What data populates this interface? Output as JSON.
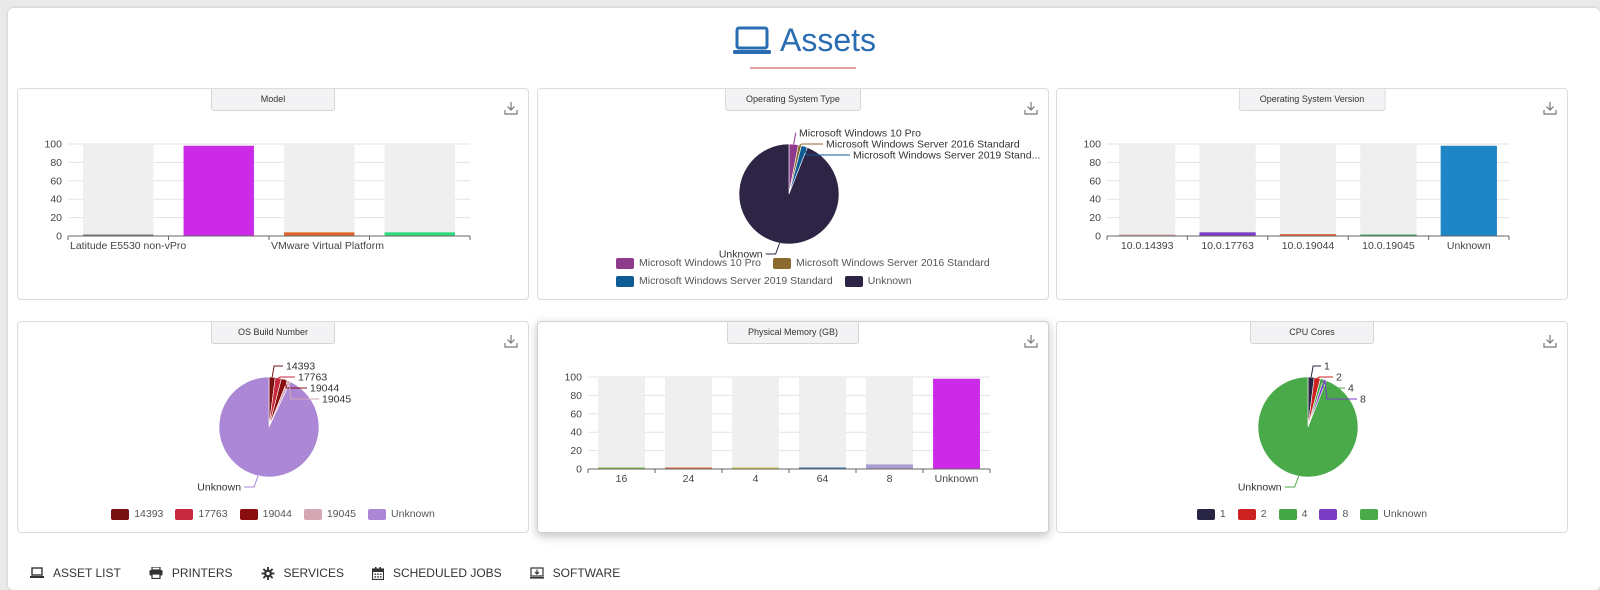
{
  "header": {
    "title": "Assets",
    "icon": "laptop-icon",
    "color": "#2a6db3"
  },
  "charts": [
    {
      "title": "Model",
      "chart_data": {
        "type": "bar",
        "categories": [
          "Latitude E5530 non-vPro",
          "",
          "VMware Virtual Platform",
          ""
        ],
        "xtick_labels": [
          "Latitude E5530 non-vPro",
          "VMware Virtual Platform"
        ],
        "values": [
          1,
          98,
          4,
          4
        ],
        "colors": [
          "#777777",
          "#cc2ae8",
          "#e0652a",
          "#2edb7a"
        ],
        "ylim": [
          0,
          100
        ],
        "yticks": [
          0,
          20,
          40,
          60,
          80,
          100
        ]
      }
    },
    {
      "title": "Operating System Type",
      "chart_data": {
        "type": "pie",
        "labels": [
          "Microsoft Windows 10 Pro",
          "Microsoft Windows Server 2016 Standard",
          "Microsoft Windows Server 2019 Standard",
          "Unknown"
        ],
        "callout_labels": [
          "Microsoft Windows 10 Pro",
          "Microsoft Windows Server 2016 Standard",
          "Microsoft Windows Server 2019 Stand...",
          "Unknown"
        ],
        "values": [
          3,
          1,
          2,
          94
        ],
        "colors": [
          "#8e3b8e",
          "#8a6a2e",
          "#0f5c94",
          "#2e2446"
        ],
        "legend": "bottom"
      }
    },
    {
      "title": "Operating System Version",
      "chart_data": {
        "type": "bar",
        "categories": [
          "10.0.14393",
          "10.0.17763",
          "10.0.19044",
          "10.0.19045",
          "Unknown"
        ],
        "values": [
          1,
          4,
          2,
          1,
          98
        ],
        "colors": [
          "#d4a7a7",
          "#7b3dc6",
          "#e05a33",
          "#39a85e",
          "#1f86c6"
        ],
        "ylim": [
          0,
          100
        ],
        "yticks": [
          0,
          20,
          40,
          60,
          80,
          100
        ]
      }
    },
    {
      "title": "OS Build Number",
      "chart_data": {
        "type": "pie",
        "labels": [
          "14393",
          "17763",
          "19044",
          "19045",
          "Unknown"
        ],
        "values": [
          2,
          2,
          2,
          1,
          93
        ],
        "colors": [
          "#7b1010",
          "#c8283c",
          "#8a0e0e",
          "#d4a7b2",
          "#ab87d6"
        ],
        "legend": "bottom"
      }
    },
    {
      "title": "Physical Memory (GB)",
      "chart_data": {
        "type": "bar",
        "categories": [
          "16",
          "24",
          "4",
          "64",
          "8",
          "Unknown"
        ],
        "values": [
          1,
          1,
          1,
          1,
          5,
          98
        ],
        "colors": [
          "#7fbf3f",
          "#e06a3a",
          "#c9c94a",
          "#2a6aa8",
          "#a99cd1",
          "#cc2ae8"
        ],
        "ylim": [
          0,
          100
        ],
        "yticks": [
          0,
          20,
          40,
          60,
          80,
          100
        ]
      }
    },
    {
      "title": "CPU Cores",
      "chart_data": {
        "type": "pie",
        "labels": [
          "1",
          "2",
          "4",
          "8",
          "Unknown"
        ],
        "values": [
          2,
          2,
          1,
          1,
          94
        ],
        "colors": [
          "#272444",
          "#cc2222",
          "#43a843",
          "#7b3dc6",
          "#4aaa4a"
        ],
        "legend": "bottom"
      }
    }
  ],
  "nav": [
    {
      "label": "ASSET LIST",
      "icon": "laptop-icon"
    },
    {
      "label": "PRINTERS",
      "icon": "printer-icon"
    },
    {
      "label": "SERVICES",
      "icon": "gear-icon"
    },
    {
      "label": "SCHEDULED JOBS",
      "icon": "calendar-icon"
    },
    {
      "label": "SOFTWARE",
      "icon": "software-download-icon"
    }
  ]
}
